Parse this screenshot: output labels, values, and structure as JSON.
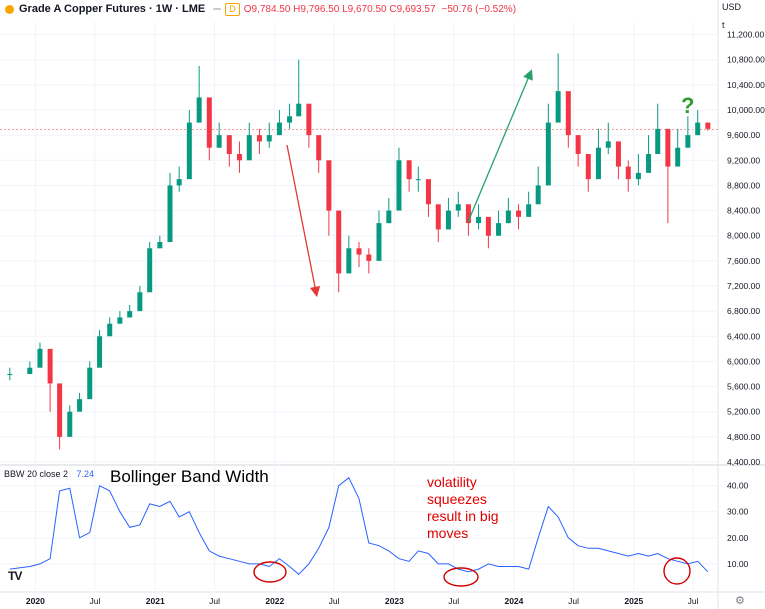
{
  "header": {
    "title": "Grade A Copper Futures · 1W · LME",
    "badge_1": "",
    "badge_2": "D",
    "ohlc": "O9,784.50 H9,796.50 L9,670.50 C9,693.57",
    "change": "−50.76 (−0.52%)"
  },
  "currency": "USD",
  "scale_selector": "t",
  "indicator": {
    "label": "BBW 20 close 2",
    "value": "7.24"
  },
  "annotations": {
    "bb_title": "Bollinger Band Width",
    "squeeze_text": [
      "volatility",
      "squeezes",
      "result in big",
      "moves"
    ],
    "question_mark": "?"
  },
  "logo_text": "TV",
  "icons": {
    "settings": "gear-icon",
    "logo": "tradingview-logo"
  },
  "colors": {
    "up": "#089981",
    "down": "#f23645",
    "bbw_line": "#2962ff",
    "arrow_down": "#e53935",
    "arrow_up": "#26a269",
    "circle": "#d00000",
    "question": "#2e9e2e"
  },
  "chart_data": [
    {
      "type": "candlestick",
      "title": "Grade A Copper Futures · 1W · LME",
      "x": [
        "2019-10",
        "2019-12",
        "2020-01",
        "2020-02",
        "2020-03",
        "2020-04",
        "2020-05",
        "2020-06",
        "2020-07",
        "2020-08",
        "2020-09",
        "2020-10",
        "2020-11",
        "2020-12",
        "2021-01",
        "2021-02",
        "2021-03",
        "2021-04",
        "2021-05",
        "2021-06",
        "2021-07",
        "2021-08",
        "2021-09",
        "2021-10",
        "2021-11",
        "2021-12",
        "2022-01",
        "2022-02",
        "2022-03",
        "2022-04",
        "2022-05",
        "2022-06",
        "2022-07",
        "2022-08",
        "2022-09",
        "2022-10",
        "2022-11",
        "2022-12",
        "2023-01",
        "2023-02",
        "2023-03",
        "2023-04",
        "2023-05",
        "2023-06",
        "2023-07",
        "2023-08",
        "2023-09",
        "2023-10",
        "2023-11",
        "2023-12",
        "2024-01",
        "2024-02",
        "2024-03",
        "2024-04",
        "2024-05",
        "2024-06",
        "2024-07",
        "2024-08",
        "2024-09",
        "2024-10",
        "2024-11",
        "2024-12",
        "2025-01",
        "2025-02",
        "2025-03",
        "2025-04",
        "2025-05",
        "2025-06",
        "2025-07",
        "2025-08"
      ],
      "close": [
        5800,
        5900,
        6200,
        5650,
        4800,
        5200,
        5400,
        5900,
        6400,
        6600,
        6700,
        6800,
        7100,
        7800,
        7900,
        8800,
        8900,
        9800,
        10200,
        9400,
        9600,
        9300,
        9200,
        9600,
        9500,
        9600,
        9800,
        9900,
        10100,
        9600,
        9200,
        8400,
        7400,
        7800,
        7700,
        7600,
        8200,
        8400,
        9200,
        8900,
        8900,
        8500,
        8100,
        8400,
        8500,
        8200,
        8300,
        8000,
        8200,
        8400,
        8300,
        8500,
        8800,
        9800,
        10300,
        9600,
        9300,
        8900,
        9400,
        9500,
        9100,
        8900,
        9000,
        9300,
        9700,
        9100,
        9400,
        9600,
        9800,
        9700
      ],
      "high": [
        5900,
        6000,
        6300,
        5800,
        5000,
        5300,
        5500,
        6000,
        6500,
        6700,
        6800,
        6900,
        7200,
        7900,
        8000,
        9000,
        9100,
        10000,
        10700,
        9700,
        9800,
        9500,
        9500,
        9800,
        9700,
        9800,
        10000,
        10100,
        10800,
        9800,
        9400,
        8600,
        7600,
        8000,
        7900,
        7800,
        8400,
        8600,
        9400,
        9200,
        9100,
        8700,
        8300,
        8600,
        8700,
        8400,
        8500,
        8200,
        8400,
        8600,
        8500,
        8700,
        9100,
        10100,
        10900,
        9900,
        9600,
        9200,
        9700,
        9800,
        9400,
        9200,
        9300,
        9600,
        10100,
        9300,
        9700,
        9900,
        10000,
        9800
      ],
      "low": [
        5700,
        5800,
        6000,
        5200,
        4600,
        5000,
        5300,
        5800,
        6200,
        6500,
        6600,
        6700,
        7000,
        7700,
        7800,
        8600,
        8700,
        9600,
        9800,
        9200,
        9400,
        9100,
        9000,
        9400,
        9300,
        9400,
        9600,
        9700,
        9900,
        9400,
        9000,
        8000,
        7100,
        7600,
        7500,
        7400,
        8000,
        8200,
        9000,
        8700,
        8700,
        8300,
        7900,
        8200,
        8300,
        8000,
        8100,
        7800,
        8000,
        8200,
        8100,
        8300,
        8600,
        9600,
        10100,
        9400,
        9100,
        8700,
        9200,
        9300,
        8900,
        8700,
        8800,
        9100,
        9500,
        8200,
        9200,
        9400,
        9600,
        9670
      ],
      "ylim": [
        4400,
        11400
      ],
      "yticks": [
        "11,200.00",
        "10,800.00",
        "10,400.00",
        "10,000.00",
        "9,600.00",
        "9,200.00",
        "8,800.00",
        "8,400.00",
        "8,000.00",
        "7,600.00",
        "7,200.00",
        "6,800.00",
        "6,400.00",
        "6,000.00",
        "5,600.00",
        "5,200.00",
        "4,800.00",
        "4,400.00"
      ],
      "xticks": [
        "2020",
        "Jul",
        "2021",
        "Jul",
        "2022",
        "Jul",
        "2023",
        "Jul",
        "2024",
        "Jul",
        "2025",
        "Jul"
      ],
      "last_value": "9,693.57",
      "grid": true
    },
    {
      "type": "line",
      "x": [
        "2019-10",
        "2019-12",
        "2020-01",
        "2020-02",
        "2020-03",
        "2020-04",
        "2020-05",
        "2020-06",
        "2020-07",
        "2020-08",
        "2020-09",
        "2020-10",
        "2020-11",
        "2020-12",
        "2021-01",
        "2021-02",
        "2021-03",
        "2021-04",
        "2021-05",
        "2021-06",
        "2021-07",
        "2021-08",
        "2021-09",
        "2021-10",
        "2021-11",
        "2021-12",
        "2022-01",
        "2022-02",
        "2022-03",
        "2022-04",
        "2022-05",
        "2022-06",
        "2022-07",
        "2022-08",
        "2022-09",
        "2022-10",
        "2022-11",
        "2022-12",
        "2023-01",
        "2023-02",
        "2023-03",
        "2023-04",
        "2023-05",
        "2023-06",
        "2023-07",
        "2023-08",
        "2023-09",
        "2023-10",
        "2023-11",
        "2023-12",
        "2024-01",
        "2024-02",
        "2024-03",
        "2024-04",
        "2024-05",
        "2024-06",
        "2024-07",
        "2024-08",
        "2024-09",
        "2024-10",
        "2024-11",
        "2024-12",
        "2025-01",
        "2025-02",
        "2025-03",
        "2025-04",
        "2025-05",
        "2025-06",
        "2025-07",
        "2025-08"
      ],
      "values": [
        8,
        9,
        10,
        12,
        38,
        39,
        20,
        22,
        40,
        38,
        30,
        24,
        25,
        33,
        32,
        34,
        28,
        30,
        22,
        15,
        13,
        12,
        11,
        10,
        10,
        9,
        12,
        9,
        6,
        10,
        16,
        24,
        40,
        43,
        35,
        18,
        17,
        15,
        12,
        11,
        15,
        14,
        10,
        10,
        8,
        7,
        8,
        10,
        9,
        9,
        9,
        8,
        20,
        32,
        28,
        20,
        17,
        16,
        16,
        15,
        14,
        13,
        14,
        13,
        14,
        12,
        11,
        10,
        11,
        7
      ],
      "ylim": [
        0,
        46
      ],
      "yticks": [
        "40.00",
        "30.00",
        "20.00",
        "10.00"
      ],
      "last_value": "7.24",
      "grid": true
    }
  ]
}
